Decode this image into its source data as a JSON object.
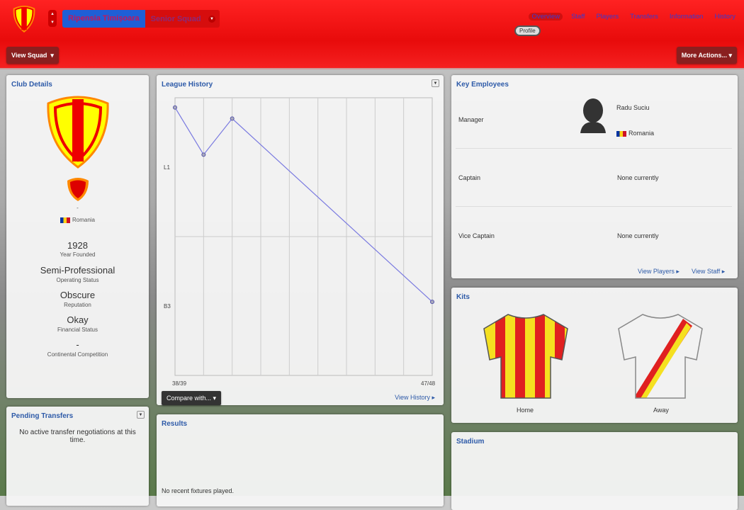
{
  "header": {
    "club_name": "Ripensia Timișoara",
    "squad": "Senior Squad",
    "view_squad": "View Squad",
    "more_actions": "More Actions...",
    "nav": [
      "Overview",
      "Staff",
      "Players",
      "Transfers",
      "Information",
      "History"
    ],
    "active_tab": "Overview",
    "subtab": "Profile"
  },
  "club_details": {
    "title": "Club Details",
    "nickname": "-",
    "nation": "Romania",
    "facts": [
      {
        "value": "1928",
        "label": "Year Founded"
      },
      {
        "value": "Semi-Professional",
        "label": "Operating Status"
      },
      {
        "value": "Obscure",
        "label": "Reputation"
      },
      {
        "value": "Okay",
        "label": "Financial Status"
      },
      {
        "value": "-",
        "label": "Continental Competition"
      }
    ]
  },
  "pending": {
    "title": "Pending Transfers",
    "text": "No active transfer negotiations at this time."
  },
  "league_history": {
    "title": "League History",
    "compare": "Compare with...",
    "view_history": "View History"
  },
  "chart_data": {
    "type": "line",
    "title": "League History",
    "x": [
      "38/39",
      "39/40",
      "40/41",
      "41/42",
      "42/43",
      "43/44",
      "44/45",
      "45/46",
      "46/47",
      "47/48"
    ],
    "x_tick_labels": [
      "38/39",
      "47/48"
    ],
    "y_tick_labels": [
      "L1",
      "B3"
    ],
    "y_note": "vertical position within league band: 0 = top of L1, 1 = L1/B3 boundary, 2 = bottom of B3",
    "points": [
      {
        "x": "38/39",
        "y": 0.07
      },
      {
        "x": "39/40",
        "y": 0.41
      },
      {
        "x": "40/41",
        "y": 0.15
      },
      {
        "x": "47/48",
        "y": 1.47
      }
    ],
    "ylim": [
      0,
      2
    ],
    "grid": true,
    "line_color": "#7a7ae0"
  },
  "results": {
    "title": "Results",
    "text": "No recent fixtures played."
  },
  "key_employees": {
    "title": "Key Employees",
    "rows": [
      {
        "role": "Manager",
        "name": "Radu Suciu",
        "nation": "Romania"
      },
      {
        "role": "Captain",
        "name": "None currently"
      },
      {
        "role": "Vice Captain",
        "name": "None currently"
      }
    ],
    "view_players": "View Players",
    "view_staff": "View Staff"
  },
  "kits": {
    "title": "Kits",
    "home": "Home",
    "away": "Away"
  },
  "stadium": {
    "title": "Stadium"
  }
}
